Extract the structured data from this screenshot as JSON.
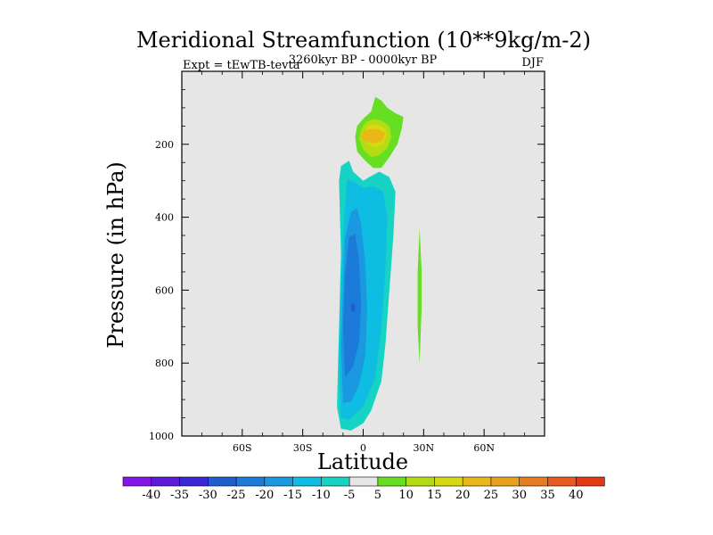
{
  "chart_data": {
    "type": "contour",
    "title": "Meridional Streamfunction (10**9kg/m-2)",
    "subtitle_left": "Expt = tEwTB-tevta",
    "subtitle_center": "3260kyr BP - 0000kyr BP",
    "subtitle_right": "DJF",
    "xlabel": "Latitude",
    "ylabel": "Pressure (in hPa)",
    "xlim": [
      -90,
      90
    ],
    "ylim": [
      0,
      1000
    ],
    "y_inverted": true,
    "x_ticks": [
      {
        "value": -60,
        "label": "60S"
      },
      {
        "value": -30,
        "label": "30S"
      },
      {
        "value": 0,
        "label": "0"
      },
      {
        "value": 30,
        "label": "30N"
      },
      {
        "value": 60,
        "label": "60N"
      }
    ],
    "y_ticks": [
      {
        "value": 200,
        "label": "200"
      },
      {
        "value": 400,
        "label": "400"
      },
      {
        "value": 600,
        "label": "600"
      },
      {
        "value": 800,
        "label": "800"
      },
      {
        "value": 1000,
        "label": "1000"
      }
    ],
    "background_color": "#e6e6e6",
    "regions": [
      {
        "name": "negative-cell-level-minus5",
        "level": -5,
        "color": "#16d3c3",
        "points": [
          [
            -11,
            980
          ],
          [
            -13,
            920
          ],
          [
            -12,
            700
          ],
          [
            -11,
            500
          ],
          [
            -12,
            300
          ],
          [
            -11,
            260
          ],
          [
            -7,
            245
          ],
          [
            -5,
            275
          ],
          [
            0,
            300
          ],
          [
            3,
            290
          ],
          [
            8,
            275
          ],
          [
            13,
            290
          ],
          [
            16,
            330
          ],
          [
            15,
            450
          ],
          [
            13,
            600
          ],
          [
            11,
            750
          ],
          [
            9,
            850
          ],
          [
            4,
            930
          ],
          [
            0,
            965
          ],
          [
            -6,
            985
          ]
        ]
      },
      {
        "name": "negative-cell-level-minus10",
        "level": -10,
        "color": "#10bde2",
        "points": [
          [
            -11,
            950
          ],
          [
            -12,
            800
          ],
          [
            -11,
            600
          ],
          [
            -10,
            450
          ],
          [
            -8,
            295
          ],
          [
            -4,
            305
          ],
          [
            0,
            320
          ],
          [
            5,
            315
          ],
          [
            10,
            330
          ],
          [
            12,
            400
          ],
          [
            11,
            550
          ],
          [
            9,
            700
          ],
          [
            6,
            840
          ],
          [
            0,
            920
          ],
          [
            -7,
            955
          ]
        ]
      },
      {
        "name": "negative-cell-level-minus15",
        "level": -15,
        "color": "#1a98e0",
        "points": [
          [
            -10,
            910
          ],
          [
            -11,
            750
          ],
          [
            -10,
            600
          ],
          [
            -9,
            460
          ],
          [
            -6,
            385
          ],
          [
            -3,
            375
          ],
          [
            -1,
            420
          ],
          [
            1,
            520
          ],
          [
            2,
            650
          ],
          [
            1,
            780
          ],
          [
            -2,
            860
          ],
          [
            -6,
            905
          ]
        ]
      },
      {
        "name": "negative-cell-level-minus20",
        "level": -20,
        "color": "#1c7ad8",
        "points": [
          [
            -9,
            840
          ],
          [
            -10,
            700
          ],
          [
            -9,
            560
          ],
          [
            -7,
            455
          ],
          [
            -4,
            445
          ],
          [
            -2,
            520
          ],
          [
            -1,
            640
          ],
          [
            -2,
            740
          ],
          [
            -5,
            810
          ]
        ]
      },
      {
        "name": "negative-cell-level-minus25",
        "level": -25,
        "color": "#1e5ecf",
        "points": [
          [
            -6,
            656
          ],
          [
            -6,
            640
          ],
          [
            -5,
            636
          ],
          [
            -4,
            640
          ],
          [
            -4,
            656
          ],
          [
            -5,
            660
          ]
        ]
      },
      {
        "name": "upper-positive-cell-level-5",
        "level": 5,
        "color": "#66de22",
        "points": [
          [
            6,
            70
          ],
          [
            9,
            80
          ],
          [
            12,
            100
          ],
          [
            16,
            115
          ],
          [
            20,
            125
          ],
          [
            19,
            160
          ],
          [
            17,
            200
          ],
          [
            13,
            235
          ],
          [
            9,
            265
          ],
          [
            5,
            265
          ],
          [
            1,
            245
          ],
          [
            -3,
            220
          ],
          [
            -4,
            180
          ],
          [
            -3,
            150
          ],
          [
            0,
            130
          ],
          [
            4,
            110
          ]
        ]
      },
      {
        "name": "upper-positive-cell-level-10",
        "level": 10,
        "color": "#b4dc14",
        "points": [
          [
            1,
            140
          ],
          [
            5,
            130
          ],
          [
            9,
            135
          ],
          [
            13,
            150
          ],
          [
            14,
            180
          ],
          [
            12,
            210
          ],
          [
            8,
            230
          ],
          [
            4,
            235
          ],
          [
            0,
            215
          ],
          [
            -2,
            185
          ],
          [
            -1,
            160
          ]
        ]
      },
      {
        "name": "upper-positive-cell-level-15",
        "level": 15,
        "color": "#d6d812",
        "points": [
          [
            2,
            150
          ],
          [
            6,
            145
          ],
          [
            10,
            152
          ],
          [
            12,
            170
          ],
          [
            10,
            200
          ],
          [
            6,
            210
          ],
          [
            2,
            200
          ],
          [
            0,
            180
          ]
        ]
      },
      {
        "name": "upper-positive-cell-level-20",
        "level": 20,
        "color": "#eab719",
        "points": [
          [
            0,
            165
          ],
          [
            4,
            158
          ],
          [
            8,
            160
          ],
          [
            11,
            172
          ],
          [
            9,
            190
          ],
          [
            5,
            198
          ],
          [
            1,
            192
          ],
          [
            -1,
            178
          ]
        ]
      },
      {
        "name": "northern-positive-strip-level-5",
        "level": 5,
        "color": "#66de22",
        "points": [
          [
            28,
            430
          ],
          [
            29,
            550
          ],
          [
            29,
            650
          ],
          [
            28,
            800
          ],
          [
            27,
            700
          ],
          [
            27,
            550
          ]
        ]
      }
    ],
    "colorbar": {
      "levels": [
        "-40",
        "-35",
        "-30",
        "-25",
        "-20",
        "-15",
        "-10",
        "-5",
        "5",
        "10",
        "15",
        "20",
        "25",
        "30",
        "35",
        "40"
      ],
      "colors": [
        "#8316e6",
        "#5e1ad6",
        "#3a28d6",
        "#1e5ecf",
        "#1c7ad8",
        "#1a98e0",
        "#10bde2",
        "#16d3c3",
        "#e6e6e6",
        "#66de22",
        "#b4dc14",
        "#d6d812",
        "#eab719",
        "#e8a01e",
        "#e87c20",
        "#e85a1e",
        "#e13a12"
      ]
    }
  }
}
